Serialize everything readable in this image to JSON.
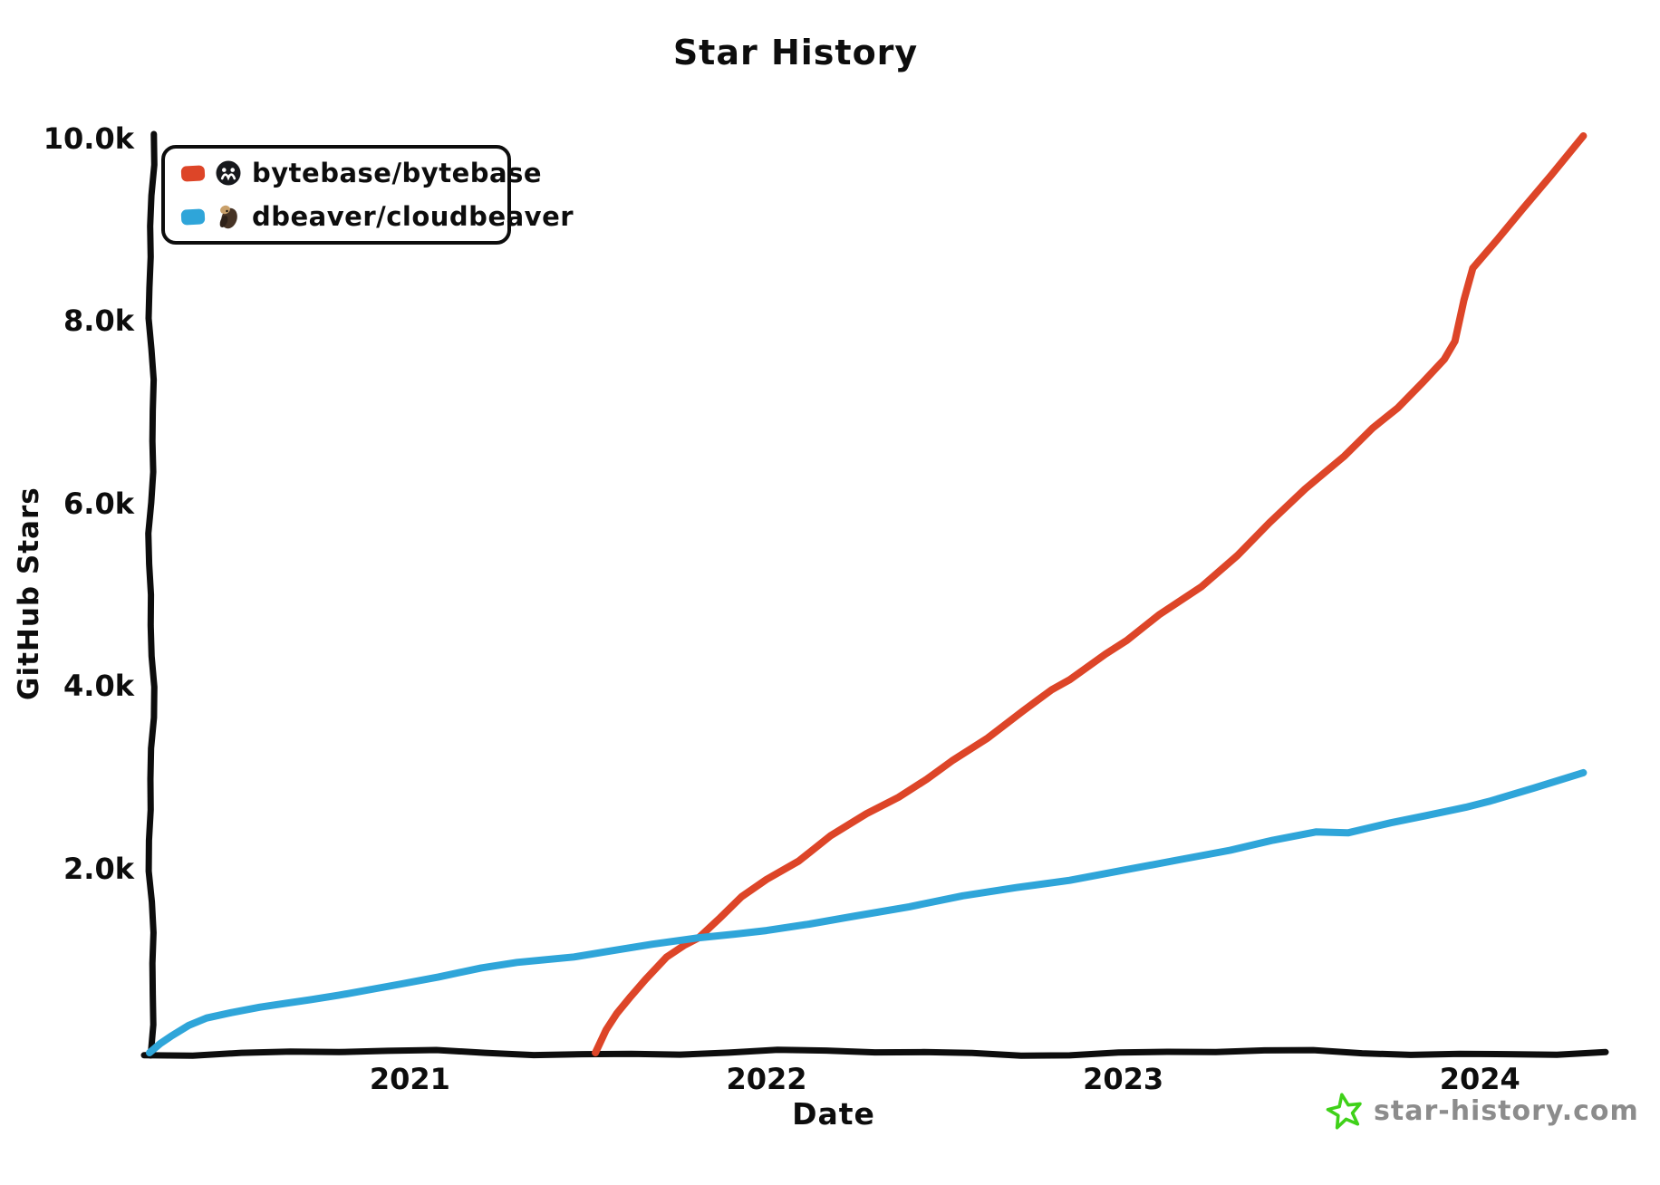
{
  "title": "Star History",
  "legend": {
    "items": [
      {
        "label": "bytebase/bytebase",
        "color": "#dd4528",
        "icon": "bytebase-avatar"
      },
      {
        "label": "dbeaver/cloudbeaver",
        "color": "#2fa5d9",
        "icon": "beaver-avatar"
      }
    ]
  },
  "watermark": {
    "text": "star-history.com",
    "star_color": "#3fd119",
    "text_color": "#8c8c8c"
  },
  "chart_data": {
    "type": "line",
    "title": "Star History",
    "xlabel": "Date",
    "ylabel": "GitHub Stars",
    "grid": false,
    "legend_position": "top-left",
    "xlim": [
      2020.27,
      2024.36
    ],
    "ylim": [
      0,
      10050
    ],
    "x_ticks": [
      {
        "label": "2021",
        "year": 2021
      },
      {
        "label": "2022",
        "year": 2022
      },
      {
        "label": "2023",
        "year": 2023
      },
      {
        "label": "2024",
        "year": 2024
      }
    ],
    "y_ticks": [
      {
        "label": "2.0k",
        "value": 2000
      },
      {
        "label": "4.0k",
        "value": 4000
      },
      {
        "label": "6.0k",
        "value": 6000
      },
      {
        "label": "8.0k",
        "value": 8000
      },
      {
        "label": "10.0k",
        "value": 10000
      }
    ],
    "series": [
      {
        "name": "bytebase/bytebase",
        "color": "#dd4528",
        "points": [
          [
            2021.52,
            0
          ],
          [
            2021.55,
            250
          ],
          [
            2021.58,
            430
          ],
          [
            2021.62,
            620
          ],
          [
            2021.66,
            800
          ],
          [
            2021.72,
            1050
          ],
          [
            2021.77,
            1180
          ],
          [
            2021.81,
            1260
          ],
          [
            2021.87,
            1480
          ],
          [
            2021.93,
            1710
          ],
          [
            2022.0,
            1900
          ],
          [
            2022.09,
            2100
          ],
          [
            2022.18,
            2380
          ],
          [
            2022.28,
            2620
          ],
          [
            2022.37,
            2800
          ],
          [
            2022.45,
            3000
          ],
          [
            2022.52,
            3200
          ],
          [
            2022.62,
            3450
          ],
          [
            2022.72,
            3750
          ],
          [
            2022.8,
            3980
          ],
          [
            2022.85,
            4090
          ],
          [
            2022.95,
            4370
          ],
          [
            2023.01,
            4520
          ],
          [
            2023.1,
            4800
          ],
          [
            2023.22,
            5110
          ],
          [
            2023.32,
            5450
          ],
          [
            2023.41,
            5810
          ],
          [
            2023.51,
            6180
          ],
          [
            2023.62,
            6540
          ],
          [
            2023.7,
            6850
          ],
          [
            2023.77,
            7070
          ],
          [
            2023.84,
            7350
          ],
          [
            2023.9,
            7600
          ],
          [
            2023.93,
            7800
          ],
          [
            2023.955,
            8250
          ],
          [
            2023.98,
            8600
          ],
          [
            2024.05,
            8920
          ],
          [
            2024.12,
            9250
          ],
          [
            2024.2,
            9620
          ],
          [
            2024.29,
            10050
          ]
        ]
      },
      {
        "name": "dbeaver/cloudbeaver",
        "color": "#2fa5d9",
        "points": [
          [
            2020.27,
            0
          ],
          [
            2020.3,
            100
          ],
          [
            2020.33,
            180
          ],
          [
            2020.38,
            300
          ],
          [
            2020.43,
            380
          ],
          [
            2020.5,
            440
          ],
          [
            2020.58,
            500
          ],
          [
            2020.65,
            540
          ],
          [
            2020.72,
            580
          ],
          [
            2020.8,
            630
          ],
          [
            2020.9,
            700
          ],
          [
            2020.97,
            750
          ],
          [
            2021.08,
            830
          ],
          [
            2021.2,
            930
          ],
          [
            2021.3,
            990
          ],
          [
            2021.38,
            1020
          ],
          [
            2021.46,
            1050
          ],
          [
            2021.57,
            1120
          ],
          [
            2021.68,
            1190
          ],
          [
            2021.81,
            1260
          ],
          [
            2021.91,
            1300
          ],
          [
            2022.0,
            1340
          ],
          [
            2022.12,
            1410
          ],
          [
            2022.25,
            1500
          ],
          [
            2022.4,
            1600
          ],
          [
            2022.55,
            1720
          ],
          [
            2022.7,
            1810
          ],
          [
            2022.85,
            1890
          ],
          [
            2023.0,
            2000
          ],
          [
            2023.15,
            2110
          ],
          [
            2023.3,
            2220
          ],
          [
            2023.42,
            2330
          ],
          [
            2023.54,
            2420
          ],
          [
            2023.63,
            2410
          ],
          [
            2023.75,
            2520
          ],
          [
            2023.85,
            2600
          ],
          [
            2023.96,
            2690
          ],
          [
            2024.03,
            2760
          ],
          [
            2024.15,
            2900
          ],
          [
            2024.29,
            3070
          ]
        ]
      }
    ]
  }
}
